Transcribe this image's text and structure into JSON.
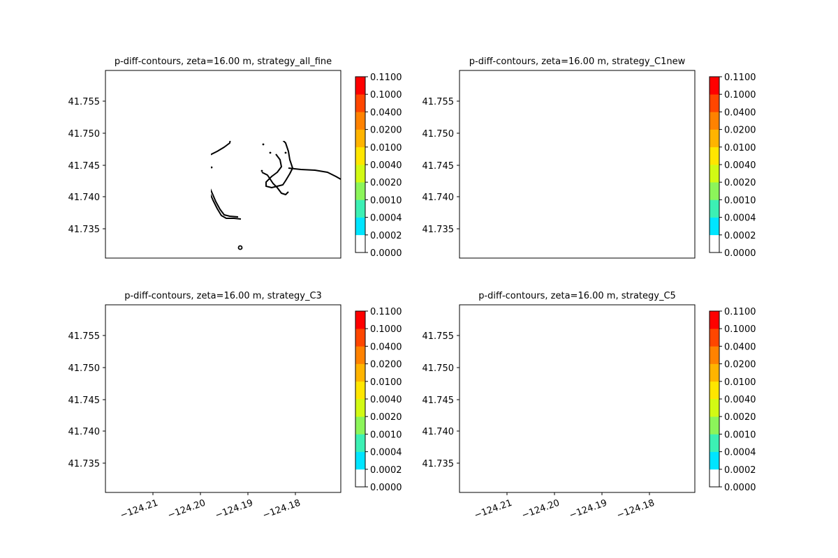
{
  "chart_data": [
    {
      "type": "contour",
      "title": "p-diff-contours, zeta=16.00 m, strategy_all_fine",
      "y_ticks": [
        "41.735",
        "41.740",
        "41.745",
        "41.750",
        "41.755"
      ],
      "x_ticks": [],
      "colorbar": {
        "ticks": [
          "0.0000",
          "0.0002",
          "0.0004",
          "0.0010",
          "0.0020",
          "0.0040",
          "0.0100",
          "0.0200",
          "0.0400",
          "0.1000",
          "0.1100"
        ]
      }
    },
    {
      "type": "contour",
      "title": "p-diff-contours, zeta=16.00 m, strategy_C1new",
      "y_ticks": [
        "41.735",
        "41.740",
        "41.745",
        "41.750",
        "41.755"
      ],
      "x_ticks": [],
      "colorbar": {
        "ticks": [
          "0.0000",
          "0.0002",
          "0.0004",
          "0.0010",
          "0.0020",
          "0.0040",
          "0.0100",
          "0.0200",
          "0.0400",
          "0.1000",
          "0.1100"
        ]
      }
    },
    {
      "type": "contour",
      "title": "p-diff-contours, zeta=16.00 m, strategy_C3",
      "y_ticks": [
        "41.735",
        "41.740",
        "41.745",
        "41.750",
        "41.755"
      ],
      "x_ticks": [
        "−124.21",
        "−124.20",
        "−124.19",
        "−124.18"
      ],
      "colorbar": {
        "ticks": [
          "0.0000",
          "0.0002",
          "0.0004",
          "0.0010",
          "0.0020",
          "0.0040",
          "0.0100",
          "0.0200",
          "0.0400",
          "0.1000",
          "0.1100"
        ]
      }
    },
    {
      "type": "contour",
      "title": "p-diff-contours, zeta=16.00 m, strategy_C5",
      "y_ticks": [
        "41.735",
        "41.740",
        "41.745",
        "41.750",
        "41.755"
      ],
      "x_ticks": [
        "−124.21",
        "−124.20",
        "−124.19",
        "−124.18"
      ],
      "colorbar": {
        "ticks": [
          "0.0000",
          "0.0002",
          "0.0004",
          "0.0010",
          "0.0020",
          "0.0040",
          "0.0100",
          "0.0200",
          "0.0400",
          "0.1000",
          "0.1100"
        ]
      }
    }
  ],
  "colorbar_colors": [
    "#ffffff",
    "#00e5ff",
    "#3cf0b4",
    "#8cf55a",
    "#d2fa14",
    "#ffe600",
    "#ffb400",
    "#ff8200",
    "#ff4600",
    "#ff0000"
  ],
  "coastline_color": "#000000"
}
